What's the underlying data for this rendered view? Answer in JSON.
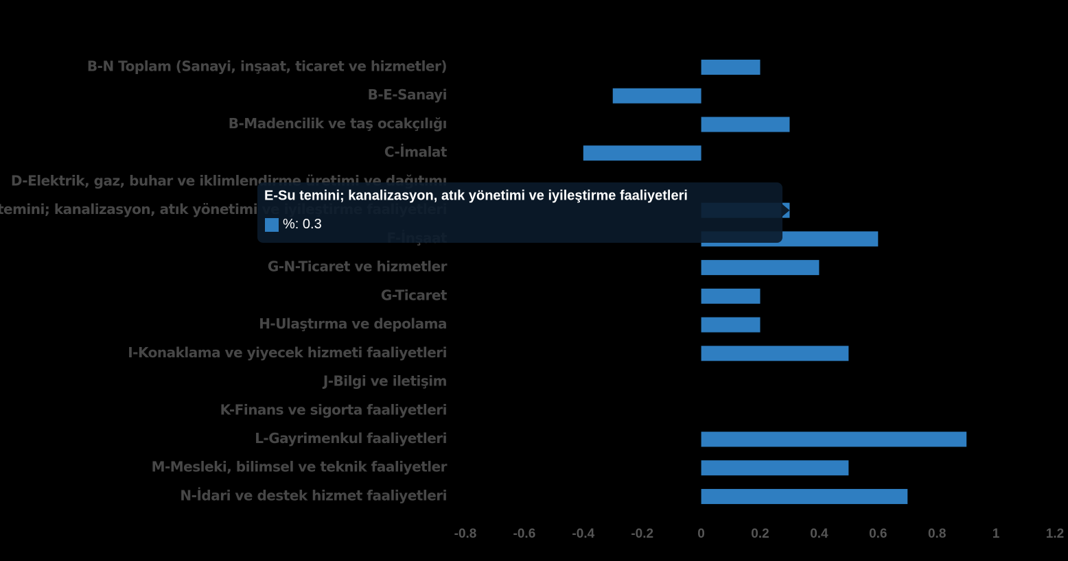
{
  "chart_data": {
    "type": "hbar",
    "categories": [
      "B-N Toplam (Sanayi, inşaat, ticaret ve hizmetler)",
      "B-E-Sanayi",
      "B-Madencilik ve taş ocakçılığı",
      "C-İmalat",
      "D-Elektrik, gaz, buhar ve iklimlendirme üretimi ve dağıtımı",
      "E-Su temini; kanalizasyon, atık yönetimi ve iyileştirme faaliyetleri",
      "F-İnşaat",
      "G-N-Ticaret ve hizmetler",
      "G-Ticaret",
      "H-Ulaştırma ve depolama",
      "I-Konaklama ve yiyecek hizmeti faaliyetleri",
      "J-Bilgi ve iletişim",
      "K-Finans ve sigorta faaliyetleri",
      "L-Gayrimenkul faaliyetleri",
      "M-Mesleki, bilimsel ve teknik faaliyetler",
      "N-İdari ve destek hizmet faaliyetleri"
    ],
    "series": [
      {
        "name": "%",
        "color": "#2f7ec1",
        "values": [
          0.2,
          -0.3,
          0.3,
          -0.4,
          null,
          0.3,
          0.6,
          0.4,
          0.2,
          0.2,
          0.5,
          null,
          null,
          0.9,
          0.5,
          0.7
        ]
      }
    ],
    "xlim": [
      -0.8,
      1.2
    ],
    "xticks": [
      -0.8,
      -0.6,
      -0.4,
      -0.2,
      0,
      0.2,
      0.4,
      0.6,
      0.8,
      1,
      1.2
    ],
    "tooltip_index": 5
  }
}
